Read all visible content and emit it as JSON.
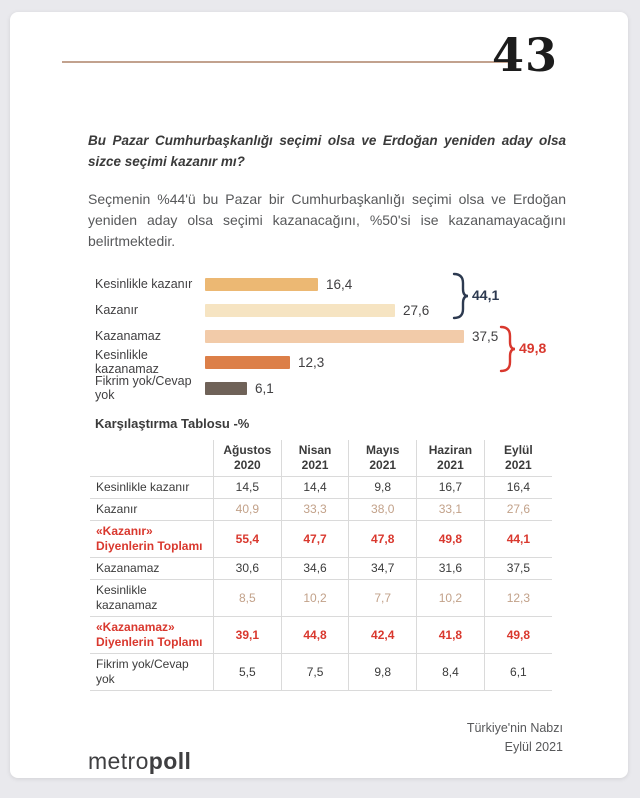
{
  "page": {
    "number": "43"
  },
  "question": "Bu Pazar Cumhurbaşkanlığı seçimi olsa ve Erdoğan yeniden aday olsa sizce seçimi kazanır mı?",
  "summary": "Seçmenin %44'ü bu Pazar bir Cumhurbaşkanlığı seçimi olsa ve Erdoğan yeniden aday olsa seçimi kazanacağını, %50'si ise kazanamayacağını belirtmektedir.",
  "chart_data": {
    "type": "bar",
    "orientation": "horizontal",
    "categories": [
      "Kesinlikle kazanır",
      "Kazanır",
      "Kazanamaz",
      "Kesinlikle kazanamaz",
      "Fikrim yok/Cevap yok"
    ],
    "values": [
      16.4,
      27.6,
      37.5,
      12.3,
      6.1
    ],
    "value_labels": [
      "16,4",
      "27,6",
      "37,5",
      "12,3",
      "6,1"
    ],
    "bar_colors": [
      "#ecb873",
      "#f6e4c2",
      "#f2cba9",
      "#dc7f48",
      "#6f6258"
    ],
    "xlim": [
      0,
      40
    ],
    "grid": false,
    "brackets": [
      {
        "label": "44,1",
        "rows": [
          0,
          1
        ],
        "color": "#2d3a50"
      },
      {
        "label": "49,8",
        "rows": [
          2,
          3
        ],
        "color": "#d9382e"
      }
    ]
  },
  "table": {
    "title": "Karşılaştırma Tablosu -%",
    "columns": [
      "",
      "Ağustos\n2020",
      "Nisan\n2021",
      "Mayıs\n2021",
      "Haziran\n2021",
      "Eylül\n2021"
    ],
    "rows": [
      {
        "label": "Kesinlikle kazanır",
        "values": [
          "14,5",
          "14,4",
          "9,8",
          "16,7",
          "16,4"
        ],
        "style": "normal"
      },
      {
        "label": "Kazanır",
        "values": [
          "40,9",
          "33,3",
          "38,0",
          "33,1",
          "27,6"
        ],
        "style": "tan"
      },
      {
        "label": "«Kazanır» Diyenlerin Toplamı",
        "values": [
          "55,4",
          "47,7",
          "47,8",
          "49,8",
          "44,1"
        ],
        "style": "red"
      },
      {
        "label": "Kazanamaz",
        "values": [
          "30,6",
          "34,6",
          "34,7",
          "31,6",
          "37,5"
        ],
        "style": "normal"
      },
      {
        "label": "Kesinlikle kazanamaz",
        "values": [
          "8,5",
          "10,2",
          "7,7",
          "10,2",
          "12,3"
        ],
        "style": "tan"
      },
      {
        "label": "«Kazanamaz» Diyenlerin Toplamı",
        "values": [
          "39,1",
          "44,8",
          "42,4",
          "41,8",
          "49,8"
        ],
        "style": "red"
      },
      {
        "label": "Fikrim yok/Cevap yok",
        "values": [
          "5,5",
          "7,5",
          "9,8",
          "8,4",
          "6,1"
        ],
        "style": "normal"
      }
    ]
  },
  "footer": {
    "logo_light": "metro",
    "logo_bold": "poll",
    "note_line1": "Türkiye'nin Nabzı",
    "note_line2": "Eylül 2021"
  },
  "colors": {
    "page_background": "#e9e9ed",
    "card_background": "#ffffff",
    "header_rule": "#c2a28e",
    "body_text": "#57585a",
    "heading_text": "#3a3a3a",
    "tan_value_text": "#c2a189",
    "total_navy": "#2d3a50",
    "total_red": "#d9382e",
    "table_border": "#dadada"
  }
}
